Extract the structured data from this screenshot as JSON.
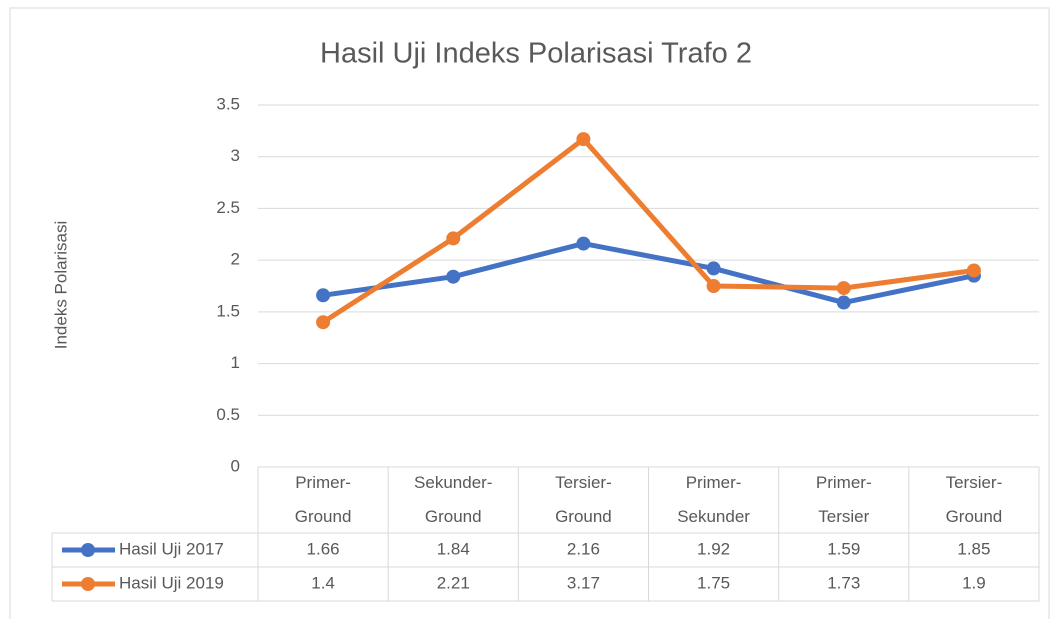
{
  "chart_data": {
    "type": "line",
    "title": "Hasil Uji Indeks Polarisasi Trafo 2",
    "y_label": "Indeks Polarisasi",
    "categories": [
      "Primer-Ground",
      "Sekunder-Ground",
      "Tersier-Ground",
      "Primer-Sekunder",
      "Primer-Tersier",
      "Tersier-Ground"
    ],
    "series": [
      {
        "name": "Hasil Uji 2017",
        "color": "#4472c4",
        "values": [
          1.66,
          1.84,
          2.16,
          1.92,
          1.59,
          1.85
        ]
      },
      {
        "name": "Hasil Uji 2019",
        "color": "#ed7d31",
        "values": [
          1.4,
          2.21,
          3.17,
          1.75,
          1.73,
          1.9
        ]
      }
    ],
    "ylim": [
      0,
      3.5
    ],
    "yticks": [
      0,
      0.5,
      1,
      1.5,
      2,
      2.5,
      3,
      3.5
    ],
    "grid": true,
    "data_table": true
  }
}
